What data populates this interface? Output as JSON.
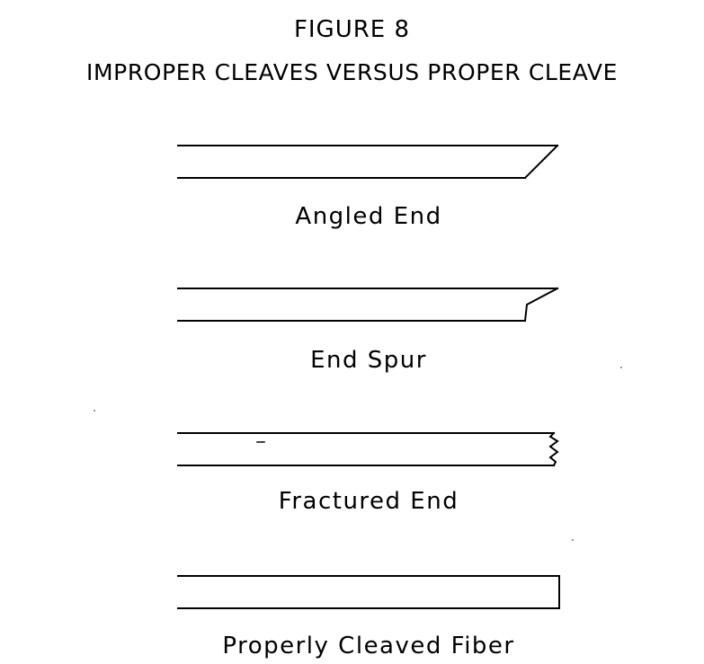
{
  "figure": {
    "number_label": "FIGURE 8",
    "title": "IMPROPER CLEAVES VERSUS PROPER CLEAVE"
  },
  "fibers": [
    {
      "label": "Angled End",
      "end_type": "angled"
    },
    {
      "label": "End Spur",
      "end_type": "spur"
    },
    {
      "label": "Fractured End",
      "end_type": "fractured"
    },
    {
      "label": "Properly Cleaved Fiber",
      "end_type": "proper"
    }
  ],
  "colors": {
    "ink": "#000000",
    "paper": "#ffffff"
  }
}
